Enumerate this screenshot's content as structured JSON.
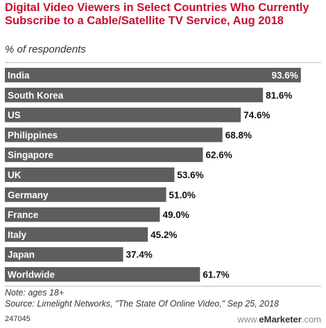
{
  "header": {
    "title": "Digital Video Viewers in Select Countries Who Currently Subscribe to a Cable/Satellite TV Service, Aug 2018",
    "subtitle": "% of respondents"
  },
  "chart_data": {
    "type": "bar",
    "orientation": "horizontal",
    "title": "Digital Video Viewers in Select Countries Who Currently Subscribe to a Cable/Satellite TV Service, Aug 2018",
    "subtitle": "% of respondents",
    "categories": [
      "India",
      "South Korea",
      "US",
      "Philippines",
      "Singapore",
      "UK",
      "Germany",
      "France",
      "Italy",
      "Japan",
      "Worldwide"
    ],
    "values": [
      93.6,
      81.6,
      74.6,
      68.8,
      62.6,
      53.6,
      51.0,
      49.0,
      45.2,
      37.4,
      61.7
    ],
    "labels": [
      "93.6%",
      "81.6%",
      "74.6%",
      "68.8%",
      "62.6%",
      "53.6%",
      "51.0%",
      "49.0%",
      "45.2%",
      "37.4%",
      "61.7%"
    ],
    "xlim": [
      0,
      100
    ],
    "grid": false,
    "legend": "none",
    "bar_color": "#5e5e5e",
    "category_label_color": "#ffffff",
    "value_label_color": "#111111"
  },
  "footer": {
    "note": "Note: ages 18+",
    "source": "Source: Limelight Networks, \"The State Of Online Video,\" Sep 25, 2018",
    "chart_id": "247045",
    "logo_prefix": "www.",
    "logo_brand": "eMarketer",
    "logo_suffix": ".com"
  },
  "colors": {
    "title": "#c8102e",
    "bar": "#5e5e5e",
    "text": "#333333"
  }
}
